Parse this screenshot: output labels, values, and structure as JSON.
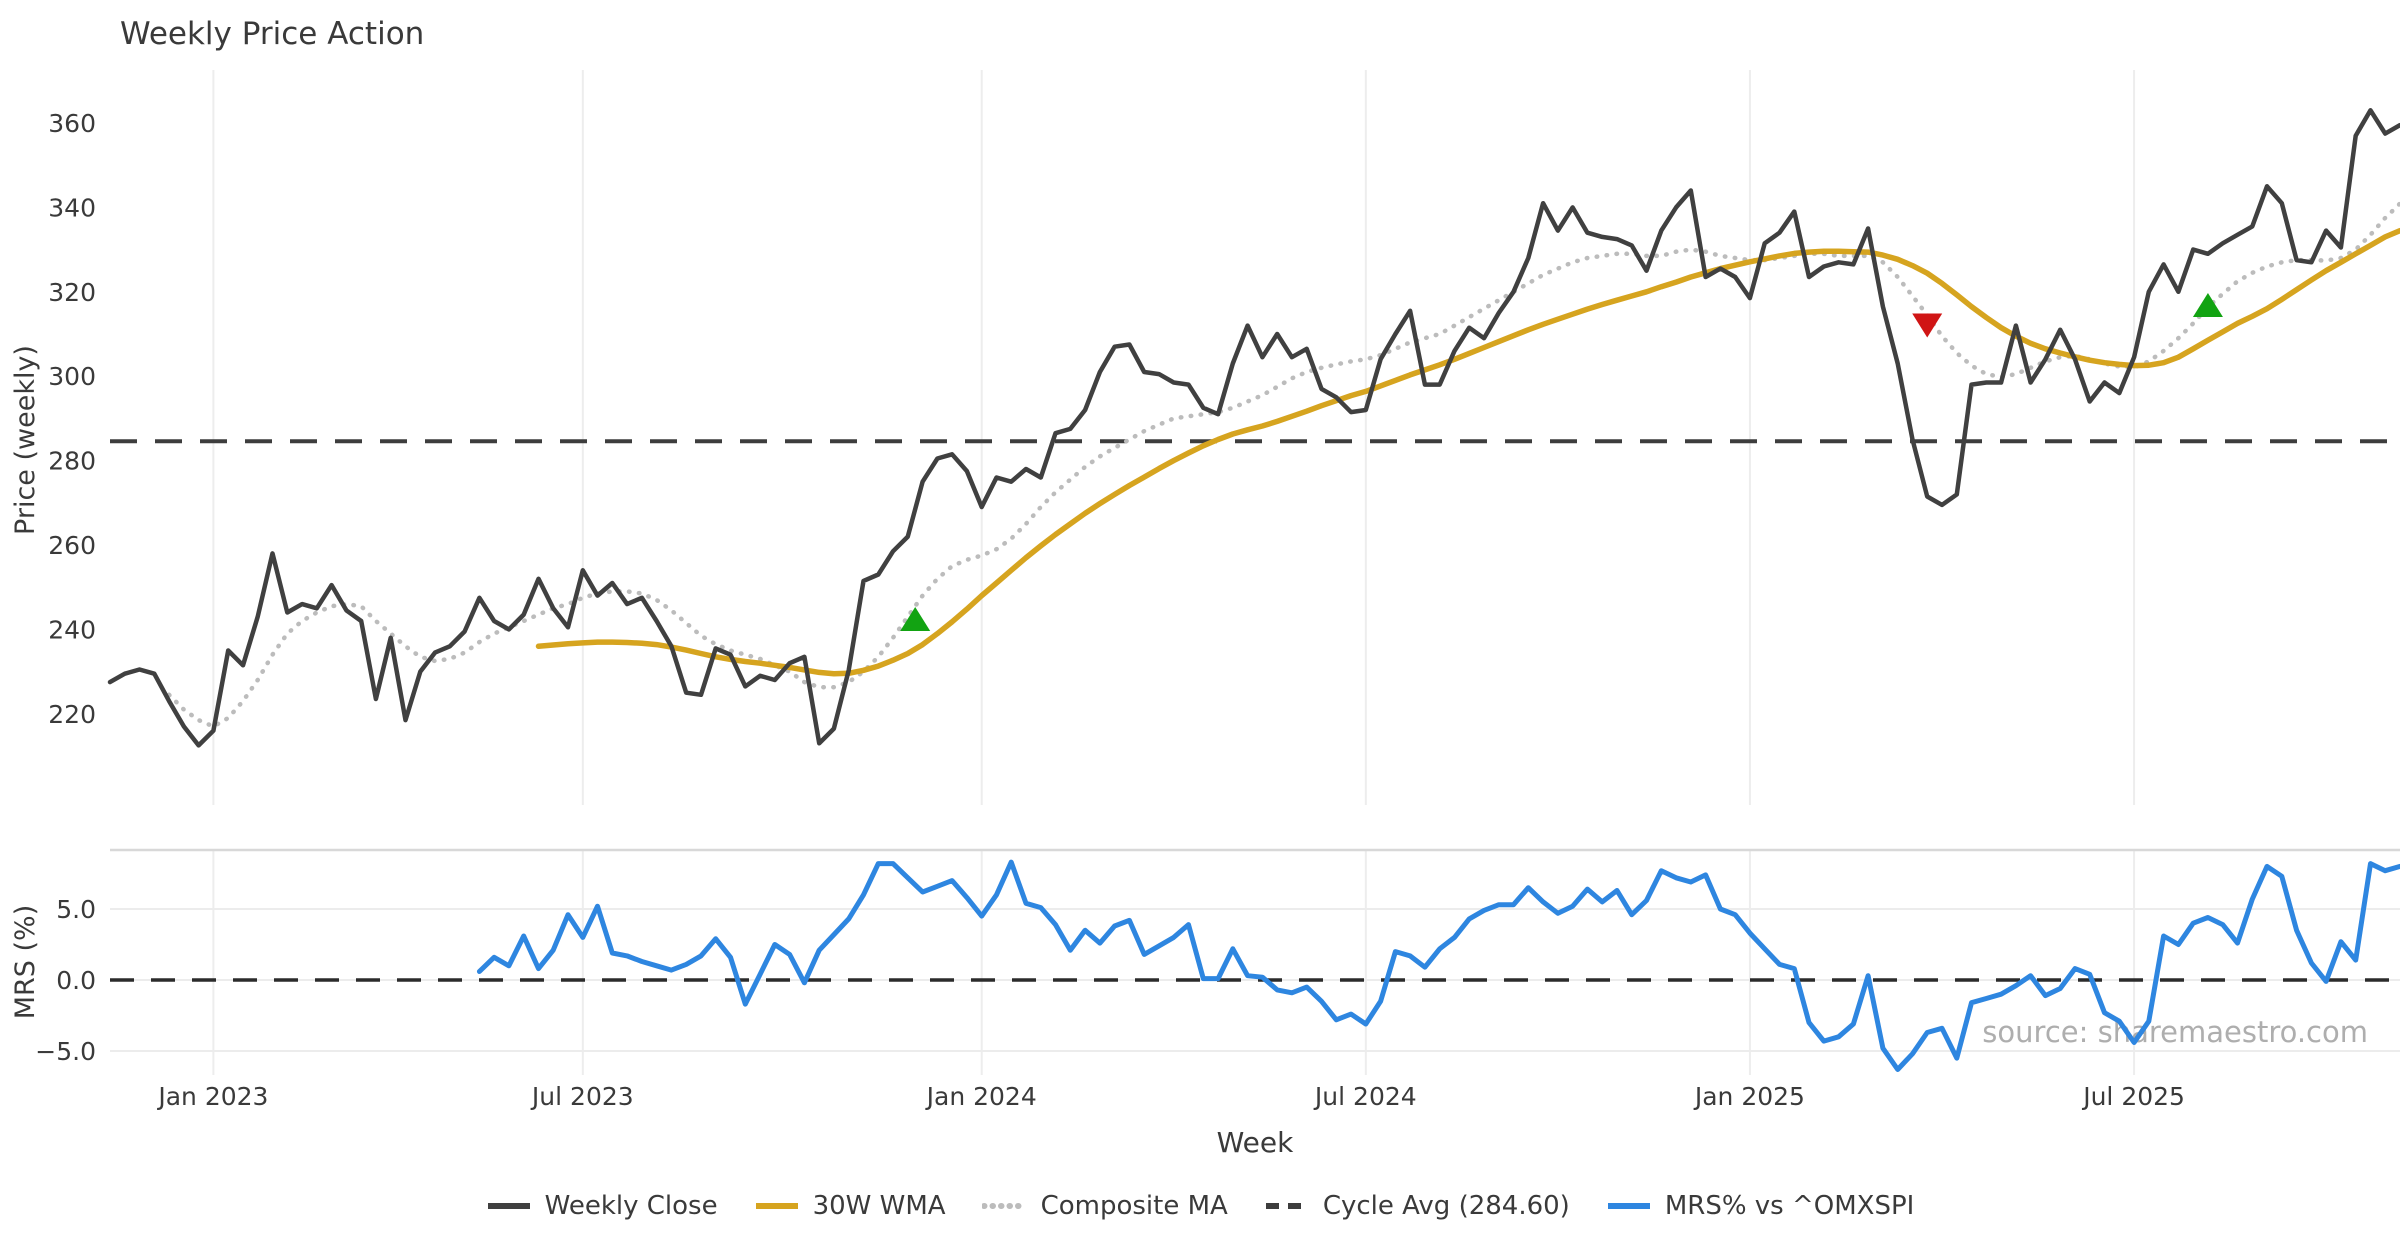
{
  "title": "Weekly Price Action",
  "watermark": "source: sharemaestro.com",
  "axes": {
    "price_axis_label": "Price (weekly)",
    "mrs_axis_label": "MRS (%)",
    "x_axis_label": "Week",
    "price_ticks": [
      220,
      240,
      260,
      280,
      300,
      320,
      340,
      360
    ],
    "mrs_ticks": [
      {
        "value": 5,
        "label": "5.0"
      },
      {
        "value": 0,
        "label": "0.0"
      },
      {
        "value": -5,
        "label": "−5.0"
      }
    ],
    "x_ticks": [
      {
        "week": 7,
        "label": "Jan 2023"
      },
      {
        "week": 32,
        "label": "Jul 2023"
      },
      {
        "week": 59,
        "label": "Jan 2024"
      },
      {
        "week": 85,
        "label": "Jul 2024"
      },
      {
        "week": 111,
        "label": "Jan 2025"
      },
      {
        "week": 137,
        "label": "Jul 2025"
      }
    ]
  },
  "legend": [
    {
      "label": "Weekly Close",
      "style": "solid",
      "color": "#404040"
    },
    {
      "label": "30W WMA",
      "style": "solid",
      "color": "#d6a41f"
    },
    {
      "label": "Composite MA",
      "style": "dotted",
      "color": "#bcbcbc"
    },
    {
      "label": "Cycle Avg (284.60)",
      "style": "dashed",
      "color": "#3d3d3d"
    },
    {
      "label": "MRS% vs ^OMXSPI",
      "style": "solid",
      "color": "#2e86e0"
    }
  ],
  "colors": {
    "weekly_close": "#404040",
    "wma": "#d6a41f",
    "composite": "#bcbcbc",
    "cycle_avg": "#3d3d3d",
    "mrs": "#2e86e0",
    "grid": "#ededed",
    "panel_border": "#d8d8d8",
    "text": "#3a3a3a",
    "watermark": "#a6a6a6",
    "buy_marker": "#12a312",
    "sell_marker": "#d01515"
  },
  "chart_data": {
    "type": "line",
    "title": "Weekly Price Action",
    "xlabel": "Week",
    "n_weeks": 156,
    "x_unit": "week_index",
    "panels": {
      "price": {
        "ylabel": "Price (weekly)",
        "ylim": [
          199,
          374
        ],
        "grid": "vertical-only"
      },
      "mrs": {
        "ylabel": "MRS (%)",
        "ylim": [
          -6.7,
          9.2
        ],
        "grid": "both-light"
      }
    },
    "legend_position": "bottom-center",
    "cycle_avg_value": 284.6,
    "series": [
      {
        "name": "Weekly Close",
        "panel": "price",
        "style": "solid",
        "color": "#404040",
        "width": 4.5,
        "values": [
          227.5,
          229.5,
          230.5,
          229.5,
          223,
          217,
          212.5,
          216,
          235,
          231.5,
          243,
          258,
          244,
          246,
          245,
          250.5,
          244.5,
          242,
          223.5,
          238,
          218.5,
          230,
          234.5,
          236,
          239.5,
          247.5,
          242,
          240,
          243.5,
          252,
          245,
          240.5,
          254,
          248,
          251,
          246,
          247.5,
          242,
          236,
          225,
          224.5,
          235.5,
          234,
          226.5,
          229,
          228,
          232,
          233.5,
          213,
          216.5,
          230.3,
          251.5,
          253,
          258.5,
          262,
          275,
          280.5,
          281.5,
          277.5,
          269,
          276,
          275,
          278,
          276,
          286.5,
          287.5,
          292,
          301,
          307,
          307.5,
          301,
          300.5,
          298.5,
          298,
          292.5,
          291,
          303,
          312,
          304.5,
          310,
          304.5,
          306.5,
          297,
          295,
          291.5,
          292,
          304,
          310,
          315.5,
          298,
          298,
          306,
          311.5,
          309,
          315,
          320,
          328,
          341,
          334.5,
          340,
          334,
          333,
          332.5,
          331,
          325,
          334.5,
          340,
          344,
          323.5,
          325.5,
          323.5,
          318.5,
          331.5,
          334,
          339,
          323.5,
          326,
          327,
          326.5,
          335,
          316.5,
          303,
          285,
          271.5,
          269.5,
          272,
          298,
          298.5,
          298.5,
          312,
          298.5,
          304,
          311,
          304,
          294,
          298.5,
          296,
          304.5,
          320,
          326.5,
          320,
          330,
          329,
          331.5,
          333.5,
          335.5,
          345,
          341,
          327.5,
          327,
          334.5,
          330.5,
          357,
          363,
          357.5,
          359.5
        ]
      },
      {
        "name": "30W WMA",
        "panel": "price",
        "style": "solid",
        "color": "#d6a41f",
        "width": 5.5,
        "values": [
          null,
          null,
          null,
          null,
          null,
          null,
          null,
          null,
          null,
          null,
          null,
          null,
          null,
          null,
          null,
          null,
          null,
          null,
          null,
          null,
          null,
          null,
          null,
          null,
          null,
          null,
          null,
          null,
          null,
          236,
          236.3,
          236.6,
          236.8,
          237,
          237,
          236.9,
          236.7,
          236.4,
          235.8,
          235.1,
          234.3,
          233.5,
          232.9,
          232.4,
          232,
          231.5,
          231,
          230.4,
          229.8,
          229.5,
          229.6,
          230.3,
          231.3,
          232.7,
          234.3,
          236.4,
          239,
          241.8,
          244.8,
          248,
          251,
          254,
          257,
          259.8,
          262.5,
          265,
          267.5,
          269.8,
          272,
          274.1,
          276.1,
          278.1,
          280,
          281.8,
          283.5,
          285,
          286.3,
          287.3,
          288.2,
          289.3,
          290.5,
          291.7,
          293,
          294.2,
          295.4,
          296.4,
          297.7,
          299,
          300.3,
          301.5,
          302.7,
          304,
          305.4,
          306.8,
          308.2,
          309.6,
          311,
          312.3,
          313.5,
          314.7,
          315.9,
          317,
          318,
          319,
          320,
          321.2,
          322.3,
          323.5,
          324.5,
          325.5,
          326.3,
          327.1,
          327.8,
          328.5,
          329.1,
          329.4,
          329.6,
          329.6,
          329.5,
          329.4,
          328.7,
          327.7,
          326.2,
          324.4,
          322,
          319.3,
          316.5,
          313.9,
          311.5,
          309.5,
          307.8,
          306.5,
          305.5,
          304.6,
          303.8,
          303.2,
          302.8,
          302.5,
          302.6,
          303.2,
          304.5,
          306.5,
          308.5,
          310.5,
          312.5,
          314.2,
          316,
          318.2,
          320.5,
          322.8,
          325,
          327,
          329,
          331,
          333,
          334.5
        ]
      },
      {
        "name": "Composite MA",
        "panel": "price",
        "style": "dotted",
        "color": "#bcbcbc",
        "width": 4.5,
        "values": [
          null,
          null,
          null,
          null,
          224.5,
          221,
          218.5,
          217,
          219,
          223,
          228,
          234,
          239,
          242,
          244,
          245.5,
          246,
          245.5,
          242,
          239,
          236,
          233.5,
          232.5,
          233,
          234.5,
          237,
          239,
          240.5,
          242,
          243.5,
          245,
          246,
          247.5,
          248.5,
          249,
          249,
          248.5,
          247,
          244.5,
          241.5,
          238.5,
          236.5,
          235,
          234,
          233,
          231.5,
          230,
          227.5,
          226.3,
          226.3,
          227.5,
          230,
          233.5,
          238,
          243,
          248,
          252,
          255,
          256.5,
          257.5,
          259,
          261.5,
          265,
          269,
          272.5,
          275.5,
          278.5,
          281,
          283,
          285,
          287,
          288.5,
          290,
          290.5,
          291,
          291.5,
          292.5,
          294,
          295.5,
          297.5,
          299.5,
          301,
          302,
          302.8,
          303.5,
          304,
          305,
          306.5,
          308,
          309,
          310,
          312,
          314,
          316,
          318,
          320,
          322,
          324,
          325.5,
          327,
          328,
          328.5,
          329,
          329,
          328.5,
          328.5,
          329.5,
          330,
          329.5,
          328.5,
          328,
          327.5,
          327.5,
          328,
          328.5,
          329,
          329,
          328.5,
          328.5,
          328.5,
          327,
          323.5,
          319,
          314.5,
          309.5,
          305.5,
          302.5,
          300.5,
          299.8,
          300.5,
          302,
          303.5,
          304.5,
          304.8,
          304,
          303,
          302.3,
          302.1,
          303.5,
          306,
          309,
          312.5,
          316.4,
          319.5,
          322.5,
          324.5,
          326,
          327,
          327.5,
          327.5,
          327.4,
          328,
          330,
          333.5,
          337.5,
          340.9
        ]
      },
      {
        "name": "Cycle Avg",
        "panel": "price",
        "style": "dashed",
        "color": "#3d3d3d",
        "width": 4,
        "constant": 284.6
      },
      {
        "name": "MRS% vs ^OMXSPI",
        "panel": "mrs",
        "style": "solid",
        "color": "#2e86e0",
        "width": 5,
        "values": [
          null,
          null,
          null,
          null,
          null,
          null,
          null,
          null,
          null,
          null,
          null,
          null,
          null,
          null,
          null,
          null,
          null,
          null,
          null,
          null,
          null,
          null,
          null,
          null,
          null,
          0.6,
          1.6,
          1.0,
          3.1,
          0.8,
          2.1,
          4.6,
          3.0,
          5.2,
          1.9,
          1.7,
          1.3,
          1.0,
          0.7,
          1.1,
          1.7,
          2.9,
          1.6,
          -1.7,
          0.4,
          2.5,
          1.8,
          -0.2,
          2.1,
          3.2,
          4.3,
          6.0,
          8.2,
          8.2,
          7.2,
          6.2,
          6.6,
          7.0,
          5.8,
          4.5,
          6.0,
          8.3,
          5.4,
          5.1,
          3.9,
          2.1,
          3.5,
          2.6,
          3.8,
          4.2,
          1.8,
          2.4,
          3.0,
          3.9,
          0.1,
          0.1,
          2.2,
          0.3,
          0.2,
          -0.7,
          -0.9,
          -0.5,
          -1.5,
          -2.8,
          -2.4,
          -3.1,
          -1.5,
          2.0,
          1.7,
          0.9,
          2.2,
          3.0,
          4.3,
          4.9,
          5.3,
          5.3,
          6.5,
          5.5,
          4.7,
          5.2,
          6.4,
          5.5,
          6.3,
          4.6,
          5.6,
          7.7,
          7.2,
          6.9,
          7.4,
          5.0,
          4.6,
          3.3,
          2.2,
          1.1,
          0.8,
          -3.0,
          -4.3,
          -4.0,
          -3.1,
          0.3,
          -4.8,
          -6.3,
          -5.2,
          -3.7,
          -3.4,
          -5.5,
          -1.6,
          -1.3,
          -1.0,
          -0.4,
          0.3,
          -1.1,
          -0.6,
          0.8,
          0.4,
          -2.3,
          -2.9,
          -4.4,
          -2.9,
          3.1,
          2.5,
          4.0,
          4.4,
          3.9,
          2.6,
          5.7,
          8.0,
          7.3,
          3.5,
          1.2,
          -0.1,
          2.7,
          1.4,
          8.2,
          7.7,
          8.0
        ]
      }
    ],
    "markers": [
      {
        "week": 54.5,
        "price": 242.0,
        "shape": "triangle-up",
        "signal": "buy",
        "color": "#12a312"
      },
      {
        "week": 123,
        "price": 312.5,
        "shape": "triangle-down",
        "signal": "sell",
        "color": "#d01515"
      },
      {
        "week": 142,
        "price": 316.4,
        "shape": "triangle-up",
        "signal": "buy",
        "color": "#12a312"
      }
    ]
  }
}
